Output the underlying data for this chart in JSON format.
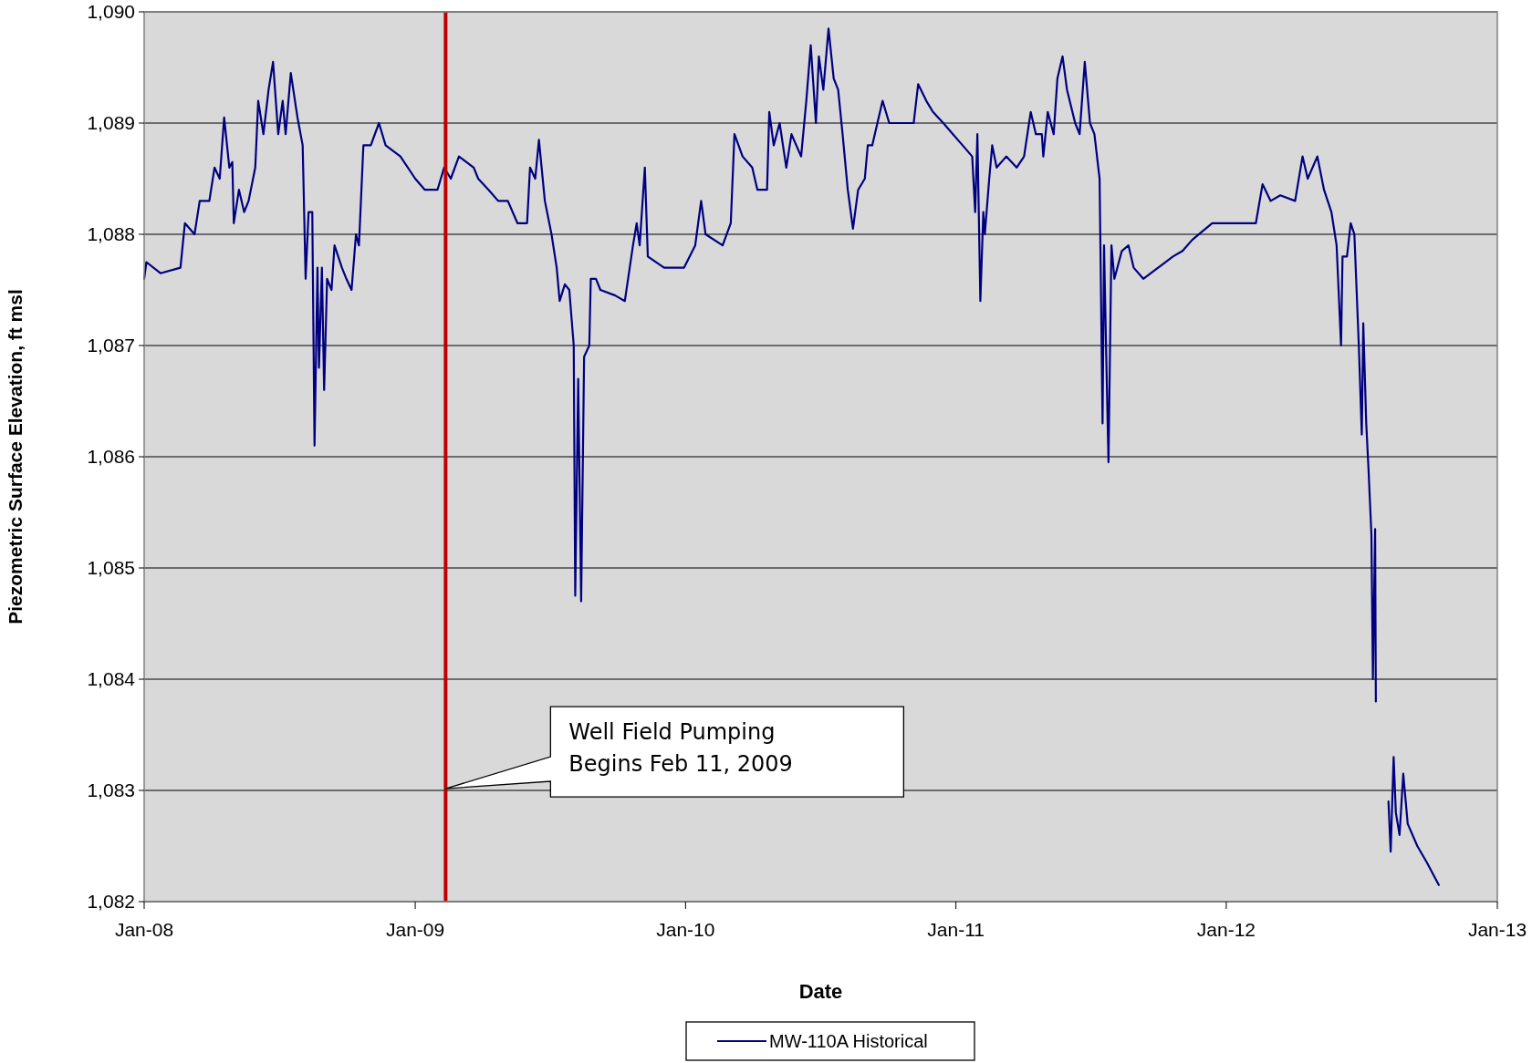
{
  "chart_data": {
    "type": "line",
    "xlabel": "Date",
    "ylabel": "Piezometric Surface Elevation, ft msl",
    "xlim": [
      "2008-01-01",
      "2013-01-01"
    ],
    "xticks": [
      {
        "value": "2008-01-01",
        "label": "Jan-08"
      },
      {
        "value": "2009-01-01",
        "label": "Jan-09"
      },
      {
        "value": "2010-01-01",
        "label": "Jan-10"
      },
      {
        "value": "2011-01-01",
        "label": "Jan-11"
      },
      {
        "value": "2012-01-01",
        "label": "Jan-12"
      },
      {
        "value": "2013-01-01",
        "label": "Jan-13"
      }
    ],
    "ylim": [
      1082,
      1090
    ],
    "yticks": [
      {
        "value": 1082,
        "label": "1,082"
      },
      {
        "value": 1083,
        "label": "1,083"
      },
      {
        "value": 1084,
        "label": "1,084"
      },
      {
        "value": 1085,
        "label": "1,085"
      },
      {
        "value": 1086,
        "label": "1,086"
      },
      {
        "value": 1087,
        "label": "1,087"
      },
      {
        "value": 1088,
        "label": "1,088"
      },
      {
        "value": 1089,
        "label": "1,089"
      },
      {
        "value": 1090,
        "label": "1,090"
      }
    ],
    "grid": "y",
    "legend": "bottom",
    "marker": "none",
    "line_style": "solid",
    "ref_lines": [
      {
        "axis": "x",
        "value": "2009-02-11",
        "color": "#c00000"
      }
    ],
    "annotations": [
      "Well Field Pumping\nBegins Feb 11, 2009"
    ],
    "series": [
      {
        "name": "MW-110A Historical",
        "color": "#000080",
        "x": [
          "2008-01-01",
          "2008-01-04",
          "2008-01-23",
          "2008-02-19",
          "2008-02-25",
          "2008-03-09",
          "2008-03-16",
          "2008-03-29",
          "2008-04-05",
          "2008-04-12",
          "2008-04-18",
          "2008-04-25",
          "2008-04-29",
          "2008-05-01",
          "2008-05-08",
          "2008-05-15",
          "2008-05-21",
          "2008-05-30",
          "2008-06-03",
          "2008-06-10",
          "2008-06-17",
          "2008-06-23",
          "2008-06-30",
          "2008-07-06",
          "2008-07-10",
          "2008-07-17",
          "2008-07-26",
          "2008-08-02",
          "2008-08-06",
          "2008-08-10",
          "2008-08-15",
          "2008-08-18",
          "2008-08-22",
          "2008-08-24",
          "2008-08-28",
          "2008-08-31",
          "2008-09-04",
          "2008-09-10",
          "2008-09-14",
          "2008-09-24",
          "2008-09-30",
          "2008-10-07",
          "2008-10-13",
          "2008-10-17",
          "2008-10-23",
          "2008-11-02",
          "2008-11-13",
          "2008-11-22",
          "2008-12-12",
          "2009-01-01",
          "2009-01-14",
          "2009-01-31",
          "2009-02-09",
          "2009-02-18",
          "2009-03-01",
          "2009-03-21",
          "2009-03-27",
          "2009-04-10",
          "2009-04-23",
          "2009-05-06",
          "2009-05-19",
          "2009-06-01",
          "2009-06-05",
          "2009-06-12",
          "2009-06-17",
          "2009-06-25",
          "2009-07-04",
          "2009-07-11",
          "2009-07-15",
          "2009-07-22",
          "2009-07-28",
          "2009-08-03",
          "2009-08-05",
          "2009-08-09",
          "2009-08-13",
          "2009-08-17",
          "2009-08-24",
          "2009-08-26",
          "2009-09-02",
          "2009-09-08",
          "2009-09-28",
          "2009-10-11",
          "2009-10-22",
          "2009-10-27",
          "2009-10-31",
          "2009-11-07",
          "2009-11-11",
          "2009-12-03",
          "2009-12-16",
          "2009-12-30",
          "2010-01-14",
          "2010-01-22",
          "2010-01-28",
          "2010-02-20",
          "2010-03-03",
          "2010-03-08",
          "2010-03-19",
          "2010-04-01",
          "2010-04-08",
          "2010-04-21",
          "2010-04-24",
          "2010-04-30",
          "2010-05-08",
          "2010-05-17",
          "2010-05-24",
          "2010-06-06",
          "2010-06-13",
          "2010-06-19",
          "2010-06-26",
          "2010-06-30",
          "2010-07-06",
          "2010-07-13",
          "2010-07-20",
          "2010-07-26",
          "2010-08-01",
          "2010-08-08",
          "2010-08-15",
          "2010-08-22",
          "2010-08-31",
          "2010-09-04",
          "2010-09-10",
          "2010-09-17",
          "2010-09-24",
          "2010-10-03",
          "2010-10-16",
          "2010-11-05",
          "2010-11-11",
          "2010-11-22",
          "2010-12-01",
          "2010-12-15",
          "2010-12-28",
          "2011-01-10",
          "2011-01-23",
          "2011-01-27",
          "2011-01-30",
          "2011-02-03",
          "2011-02-07",
          "2011-02-09",
          "2011-02-15",
          "2011-02-19",
          "2011-02-25",
          "2011-03-10",
          "2011-03-24",
          "2011-04-03",
          "2011-04-12",
          "2011-04-19",
          "2011-04-27",
          "2011-04-29",
          "2011-05-05",
          "2011-05-13",
          "2011-05-18",
          "2011-05-25",
          "2011-05-31",
          "2011-06-11",
          "2011-06-17",
          "2011-06-24",
          "2011-07-01",
          "2011-07-07",
          "2011-07-14",
          "2011-07-18",
          "2011-07-20",
          "2011-07-23",
          "2011-07-26",
          "2011-07-30",
          "2011-08-03",
          "2011-08-13",
          "2011-08-22",
          "2011-08-29",
          "2011-09-11",
          "2011-10-01",
          "2011-10-21",
          "2011-11-03",
          "2011-11-16",
          "2011-12-13",
          "2012-01-01",
          "2012-01-21",
          "2012-02-10",
          "2012-02-19",
          "2012-03-01",
          "2012-03-14",
          "2012-04-03",
          "2012-04-13",
          "2012-04-20",
          "2012-05-03",
          "2012-05-12",
          "2012-05-22",
          "2012-05-29",
          "2012-06-04",
          "2012-06-06",
          "2012-06-12",
          "2012-06-17",
          "2012-06-22",
          "2012-06-28",
          "2012-07-02",
          "2012-07-04",
          "2012-07-08",
          "2012-07-11",
          "2012-07-15",
          "2012-07-17",
          "2012-07-20",
          "2012-07-21",
          "2012-07-30",
          "2012-08-07",
          "2012-08-10",
          "2012-08-14",
          "2012-08-17",
          "2012-08-22",
          "2012-08-27",
          "2012-09-02",
          "2012-09-15",
          "2012-09-28",
          "2012-10-14"
        ],
        "values": [
          1087.6,
          1087.75,
          1087.65,
          1087.7,
          1088.1,
          1088.0,
          1088.3,
          1088.3,
          1088.6,
          1088.5,
          1089.05,
          1088.6,
          1088.65,
          1088.1,
          1088.4,
          1088.2,
          1088.3,
          1088.6,
          1089.2,
          1088.9,
          1089.3,
          1089.55,
          1088.9,
          1089.2,
          1088.9,
          1089.45,
          1089.05,
          1088.8,
          1087.6,
          1088.2,
          1088.2,
          1086.1,
          1087.7,
          1086.8,
          1087.7,
          1086.6,
          1087.6,
          1087.5,
          1087.9,
          1087.7,
          1087.6,
          1087.5,
          1088.0,
          1087.9,
          1088.8,
          1088.8,
          1089.0,
          1088.8,
          1088.7,
          1088.5,
          1088.4,
          1088.4,
          1088.6,
          1088.5,
          1088.7,
          1088.6,
          1088.5,
          1088.4,
          1088.3,
          1088.3,
          1088.1,
          1088.1,
          1088.6,
          1088.5,
          1088.85,
          1088.3,
          1088.0,
          1087.7,
          1087.4,
          1087.55,
          1087.5,
          1087.0,
          1084.75,
          1086.7,
          1084.7,
          1086.9,
          1087.0,
          1087.6,
          1087.6,
          1087.5,
          1087.45,
          1087.4,
          1087.9,
          1088.1,
          1087.9,
          1088.6,
          1087.8,
          1087.7,
          1087.7,
          1087.7,
          1087.9,
          1088.3,
          1088.0,
          1087.9,
          1088.1,
          1088.9,
          1088.7,
          1088.6,
          1088.4,
          1088.4,
          1089.1,
          1088.8,
          1089.0,
          1088.6,
          1088.9,
          1088.7,
          1089.2,
          1089.7,
          1089.0,
          1089.6,
          1089.3,
          1089.85,
          1089.4,
          1089.3,
          1088.9,
          1088.4,
          1088.05,
          1088.4,
          1088.5,
          1088.8,
          1088.8,
          1089.0,
          1089.2,
          1089.0,
          1089.0,
          1089.0,
          1089.35,
          1089.2,
          1089.1,
          1089.0,
          1088.9,
          1088.8,
          1088.7,
          1088.2,
          1088.9,
          1087.4,
          1088.2,
          1088.0,
          1088.5,
          1088.8,
          1088.6,
          1088.7,
          1088.6,
          1088.7,
          1089.1,
          1088.9,
          1088.9,
          1088.7,
          1089.1,
          1088.9,
          1089.4,
          1089.6,
          1089.3,
          1089.0,
          1088.9,
          1089.55,
          1089.0,
          1088.9,
          1088.5,
          1086.3,
          1087.9,
          1086.9,
          1085.95,
          1087.9,
          1087.6,
          1087.85,
          1087.9,
          1087.7,
          1087.6,
          1087.7,
          1087.8,
          1087.85,
          1087.95,
          1088.1,
          1088.1,
          1088.1,
          1088.1,
          1088.45,
          1088.3,
          1088.35,
          1088.3,
          1088.7,
          1088.5,
          1088.7,
          1088.4,
          1088.2,
          1087.9,
          1087.0,
          1087.8,
          1087.8,
          1088.1,
          1088.0,
          1087.0,
          1086.2,
          1087.2,
          1086.3,
          1085.9,
          1085.3,
          1084.0,
          1085.35,
          1083.8,
          null,
          1082.9,
          1082.45,
          1083.3,
          1082.8,
          1082.6,
          1083.15,
          1082.7,
          1082.5,
          1082.35,
          1082.15
        ]
      }
    ]
  }
}
